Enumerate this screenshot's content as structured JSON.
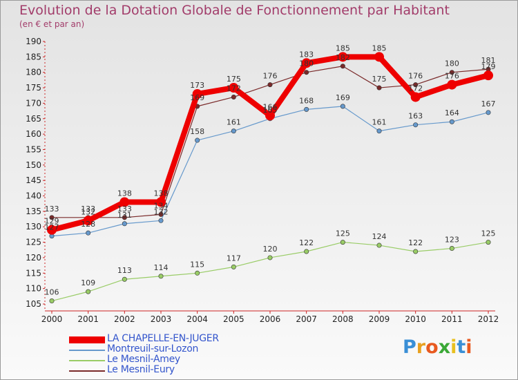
{
  "chart_title": "Evolution de la Dotation Globale de Fonctionnement par Habitant",
  "chart_subtitle": "(en € et par an)",
  "logo": {
    "letters": [
      "P",
      "r",
      "o",
      "x",
      "i",
      "t",
      "i"
    ],
    "colors": [
      "#3a8fd6",
      "#e8a020",
      "#e85a20",
      "#3aa836",
      "#e8c020",
      "#3a8fd6",
      "#e85a20"
    ]
  },
  "chart_data": {
    "type": "line",
    "x": [
      2000,
      2001,
      2002,
      2003,
      2004,
      2005,
      2006,
      2007,
      2008,
      2009,
      2010,
      2011,
      2012
    ],
    "ylim": [
      105,
      190
    ],
    "yticks": [
      105,
      110,
      115,
      120,
      125,
      130,
      135,
      140,
      145,
      150,
      155,
      160,
      165,
      170,
      175,
      180,
      185,
      190
    ],
    "grid": false,
    "legend_position": "bottom-left",
    "series": [
      {
        "name": "LA CHAPELLE-EN-JUGER",
        "color": "#ee0000",
        "values": [
          129,
          132,
          138,
          138,
          173,
          175,
          166,
          183,
          185,
          185,
          172,
          176,
          179
        ]
      },
      {
        "name": "Montreuil-sur-Lozon",
        "color": "#6699cc",
        "values": [
          127,
          128,
          131,
          132,
          158,
          161,
          165,
          168,
          169,
          161,
          163,
          164,
          167
        ]
      },
      {
        "name": "Le Mesnil-Amey",
        "color": "#99cc66",
        "values": [
          106,
          109,
          113,
          114,
          115,
          117,
          120,
          122,
          125,
          124,
          122,
          123,
          125
        ]
      },
      {
        "name": "Le Mesnil-Eury",
        "color": "#7a2a2a",
        "values": [
          133,
          133,
          133,
          134,
          169,
          172,
          176,
          180,
          182,
          175,
          176,
          180,
          181
        ]
      }
    ]
  }
}
